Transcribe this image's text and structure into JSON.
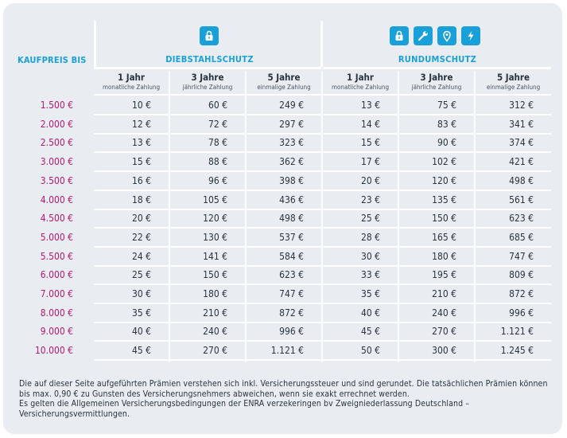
{
  "header": {
    "kaufpreis_label": "KAUFPREIS BIS",
    "groups": [
      {
        "title": "DIEBSTAHLSCHUTZ",
        "icons": [
          "lock-icon"
        ]
      },
      {
        "title": "RUNDUMSCHUTZ",
        "icons": [
          "lock-icon",
          "wrench-icon",
          "location-pin-icon",
          "lightning-icon"
        ]
      }
    ],
    "accent_color": "#1aa0d8",
    "price_color": "#b4196f"
  },
  "columns": [
    {
      "title": "1 Jahr",
      "subtitle": "monatliche Zahlung"
    },
    {
      "title": "3 Jahre",
      "subtitle": "jährliche Zahlung"
    },
    {
      "title": "5 Jahre",
      "subtitle": "einmalige Zahlung"
    },
    {
      "title": "1 Jahr",
      "subtitle": "monatliche Zahlung"
    },
    {
      "title": "3 Jahre",
      "subtitle": "jährliche Zahlung"
    },
    {
      "title": "5 Jahre",
      "subtitle": "einmalige Zahlung"
    }
  ],
  "rows": [
    {
      "price": "1.500 €",
      "values": [
        "10 €",
        "60 €",
        "249 €",
        "13 €",
        "75 €",
        "312 €"
      ]
    },
    {
      "price": "2.000 €",
      "values": [
        "12 €",
        "72 €",
        "297 €",
        "14 €",
        "83 €",
        "341 €"
      ]
    },
    {
      "price": "2.500 €",
      "values": [
        "13 €",
        "78 €",
        "323 €",
        "15 €",
        "90 €",
        "374 €"
      ]
    },
    {
      "price": "3.000 €",
      "values": [
        "15 €",
        "88 €",
        "362 €",
        "17 €",
        "102 €",
        "421 €"
      ]
    },
    {
      "price": "3.500 €",
      "values": [
        "16 €",
        "96 €",
        "398 €",
        "20 €",
        "120 €",
        "498 €"
      ]
    },
    {
      "price": "4.000 €",
      "values": [
        "18 €",
        "105 €",
        "436 €",
        "23 €",
        "135 €",
        "561 €"
      ]
    },
    {
      "price": "4.500 €",
      "values": [
        "20 €",
        "120 €",
        "498 €",
        "25 €",
        "150 €",
        "623 €"
      ]
    },
    {
      "price": "5.000 €",
      "values": [
        "22 €",
        "130 €",
        "537 €",
        "28 €",
        "165 €",
        "685 €"
      ]
    },
    {
      "price": "5.500 €",
      "values": [
        "24 €",
        "141 €",
        "584 €",
        "30 €",
        "180 €",
        "747 €"
      ]
    },
    {
      "price": "6.000 €",
      "values": [
        "25 €",
        "150 €",
        "623 €",
        "33 €",
        "195 €",
        "809 €"
      ]
    },
    {
      "price": "7.000 €",
      "values": [
        "30 €",
        "180 €",
        "747 €",
        "35 €",
        "210 €",
        "872 €"
      ]
    },
    {
      "price": "8.000 €",
      "values": [
        "35 €",
        "210 €",
        "872 €",
        "40 €",
        "240 €",
        "996 €"
      ]
    },
    {
      "price": "9.000 €",
      "values": [
        "40 €",
        "240 €",
        "996 €",
        "45 €",
        "270 €",
        "1.121 €"
      ]
    },
    {
      "price": "10.000 €",
      "values": [
        "45 €",
        "270 €",
        "1.121 €",
        "50 €",
        "300 €",
        "1.245 €"
      ]
    }
  ],
  "footer": {
    "line1": "Die auf dieser Seite aufgeführten Prämien verstehen sich inkl. Versicherungssteuer und sind gerundet. Die tatsächlichen Prämien können bis max. 0,90 € zu Gunsten des Versicherungsnehmers abweichen, wenn sie exakt errechnet werden.",
    "line2": "Es gelten die Allgemeinen Versicherungsbedingungen der ENRA verzekeringen bv Zweigniederlassung Deutschland – Versicherungsvermittlungen."
  }
}
